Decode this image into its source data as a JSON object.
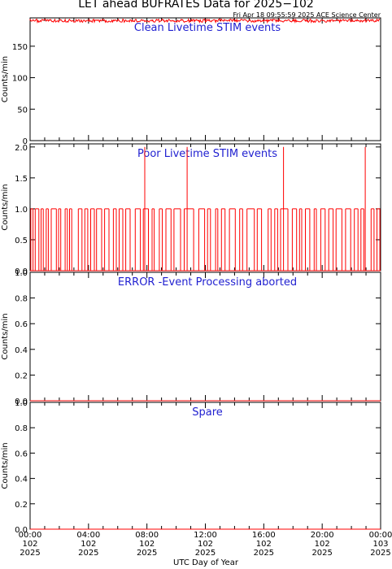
{
  "title": "LET ahead BUFRATES Data for 2025−102",
  "timestamp": "Fri Apr 18 09:55:59 2025 ACE Science Center",
  "x_axis": {
    "label": "UTC Day of Year",
    "ticks": [
      {
        "time": "00:00",
        "day": "102",
        "year": "2025"
      },
      {
        "time": "04:00",
        "day": "102",
        "year": "2025"
      },
      {
        "time": "08:00",
        "day": "102",
        "year": "2025"
      },
      {
        "time": "12:00",
        "day": "102",
        "year": "2025"
      },
      {
        "time": "16:00",
        "day": "102",
        "year": "2025"
      },
      {
        "time": "20:00",
        "day": "102",
        "year": "2025"
      },
      {
        "time": "00:00",
        "day": "103",
        "year": "2025"
      }
    ]
  },
  "chart_data": [
    {
      "type": "line",
      "title": "Clean Livetime STIM events",
      "ylabel": "Counts/min",
      "ylim": [
        0,
        195
      ],
      "yticks": [
        "0",
        "50",
        "100",
        "150"
      ],
      "xlim_hours": [
        0,
        24
      ],
      "color": "#ff0000",
      "series": [
        {
          "baseline": 191,
          "low": 188,
          "high": 193
        }
      ]
    },
    {
      "type": "line",
      "title": "Poor Livetime STIM events",
      "ylabel": "Counts/min",
      "ylim": [
        0,
        2.05
      ],
      "yticks": [
        "0.0",
        "0.5",
        "1.0",
        "1.5",
        "2.0"
      ],
      "xlim_hours": [
        0,
        24
      ],
      "color": "#ff0000",
      "series": [
        {
          "baseline": 0,
          "ones_hours": [
            0.05,
            0.2,
            0.35,
            0.6,
            0.75,
            0.9,
            1.1,
            1.25,
            1.45,
            1.8,
            1.95,
            2.1,
            2.4,
            2.55,
            2.7,
            2.85,
            3.3,
            3.55,
            3.75,
            3.95,
            4.15,
            4.4,
            4.55,
            4.9,
            5.1,
            5.4,
            5.7,
            5.9,
            6.1,
            6.35,
            6.55,
            6.85,
            7.2,
            7.55,
            7.75,
            8.1,
            8.35,
            8.5,
            8.85,
            9.05,
            9.3,
            9.65,
            9.85,
            10.3,
            10.55,
            11.2,
            11.55,
            11.95,
            12.15,
            12.35,
            12.7,
            12.85,
            13.1,
            13.35,
            13.65,
            14.05,
            14.35,
            14.55,
            14.85,
            15.35,
            15.55,
            15.85,
            16.3,
            16.5,
            16.75,
            16.95,
            17.15,
            17.65,
            17.95,
            18.25,
            18.45,
            18.6,
            18.85,
            19.15,
            19.45,
            19.6,
            19.9,
            20.2,
            20.45,
            20.75,
            20.95,
            21.35,
            21.6,
            21.95,
            22.2,
            22.45,
            22.65,
            22.85,
            23.35,
            23.55,
            23.75,
            23.95
          ],
          "twos_hours": [
            7.85,
            10.75,
            17.35,
            22.95
          ]
        }
      ]
    },
    {
      "type": "line",
      "title": "ERROR -Event Processing aborted",
      "ylabel": "Counts/min",
      "ylim": [
        0,
        1.0
      ],
      "yticks": [
        "0.0",
        "0.2",
        "0.4",
        "0.6",
        "0.8",
        "1.0"
      ],
      "xlim_hours": [
        0,
        24
      ],
      "color": "#ff0000",
      "series": [
        {
          "baseline": 0
        }
      ]
    },
    {
      "type": "line",
      "title": "Spare",
      "ylabel": "Counts/min",
      "ylim": [
        0,
        1.0
      ],
      "yticks": [
        "0.0",
        "0.2",
        "0.4",
        "0.6",
        "0.8",
        "1.0"
      ],
      "xlim_hours": [
        0,
        24
      ],
      "color": "#ff0000",
      "series": [
        {
          "baseline": 0
        }
      ]
    }
  ]
}
